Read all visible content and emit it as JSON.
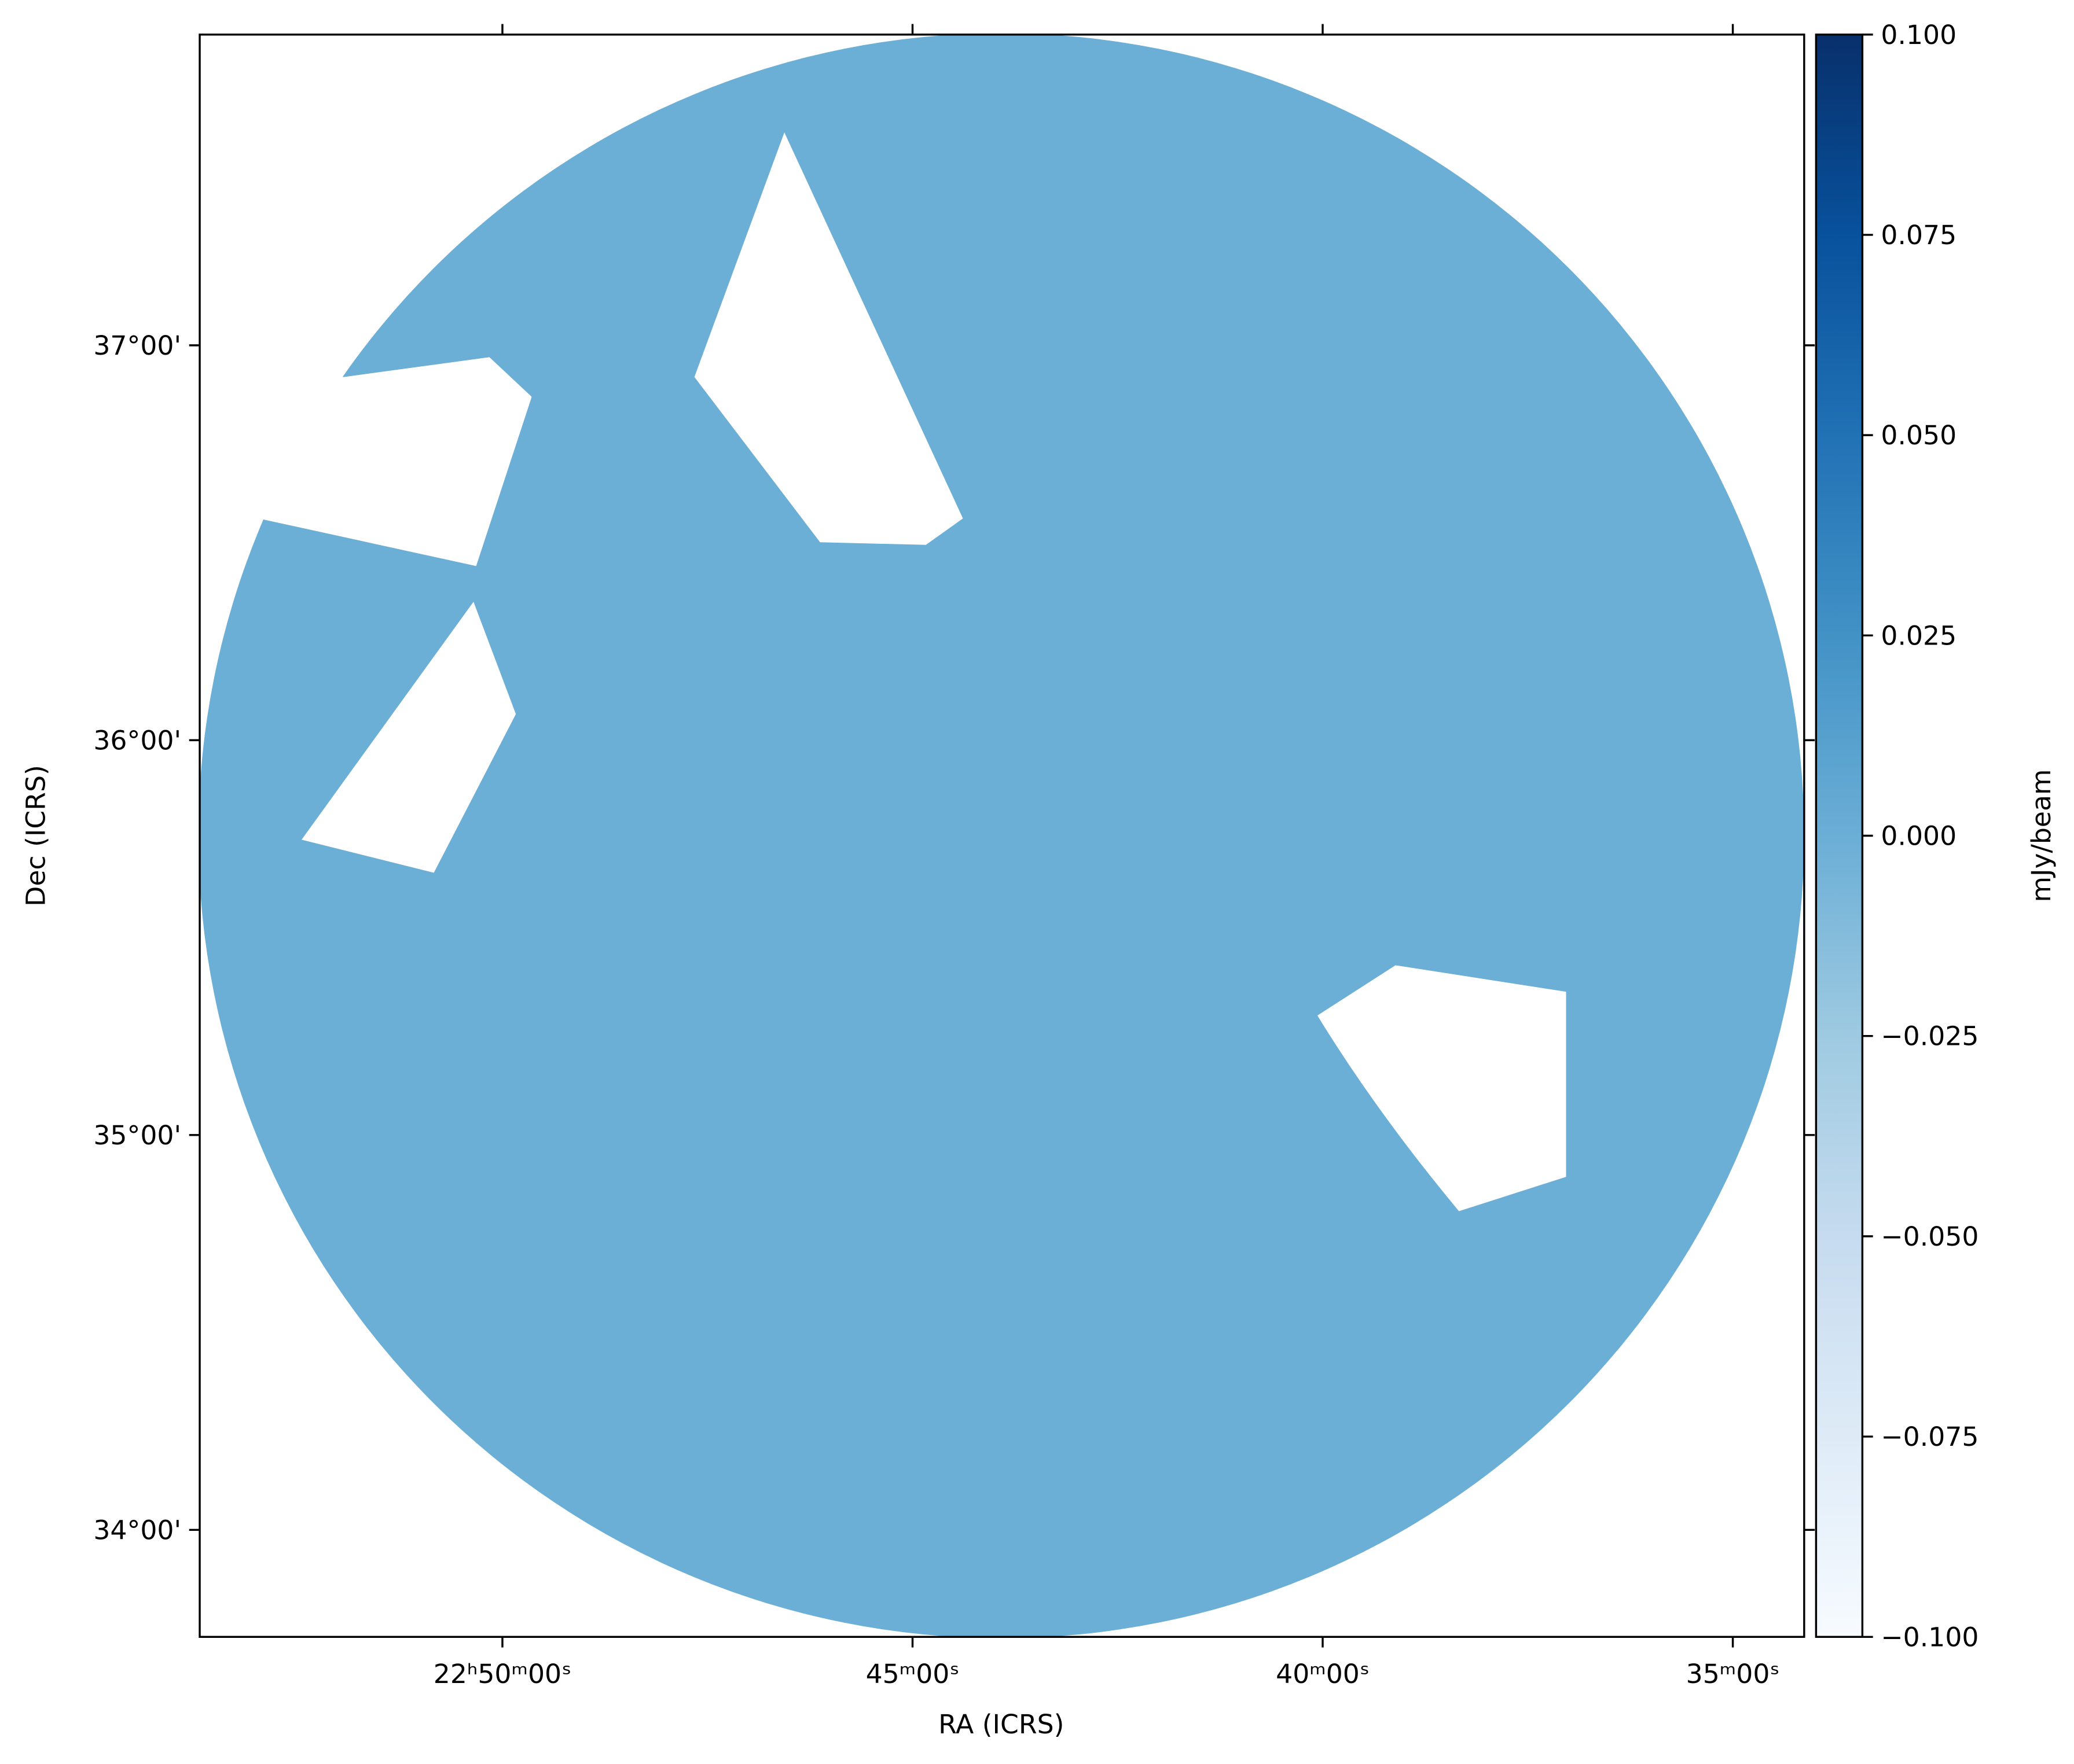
{
  "chart_data": {
    "type": "image",
    "xlabel": "RA (ICRS)",
    "ylabel": "Dec (ICRS)",
    "color": "#6baed6",
    "xlim": [
      53.69,
      34.13
    ],
    "xticks": [
      {
        "value": 50,
        "label": "22ʰ50ᵐ00ˢ"
      },
      {
        "value": 45,
        "label": "45ᵐ00ˢ"
      },
      {
        "value": 40,
        "label": "40ᵐ00ˢ"
      },
      {
        "value": 35,
        "label": "35ᵐ00ˢ"
      }
    ],
    "ylim": [
      33.729,
      37.787
    ],
    "yticks": [
      {
        "value": 37,
        "label": "37°00'"
      },
      {
        "value": 36,
        "label": "36°00'"
      },
      {
        "value": 35,
        "label": "35°00'"
      },
      {
        "value": 34,
        "label": "34°00'"
      }
    ],
    "colorbar": {
      "label": "mJy/beam",
      "cmap": "Blues",
      "lim": [
        -0.1,
        0.1
      ],
      "ticks": [
        {
          "value": 0.1,
          "label": "0.100"
        },
        {
          "value": 0.075,
          "label": "0.075"
        },
        {
          "value": 0.05,
          "label": "0.050"
        },
        {
          "value": 0.025,
          "label": "0.025"
        },
        {
          "value": 0,
          "label": "0.000"
        },
        {
          "value": -0.025,
          "label": "−0.025"
        },
        {
          "value": -0.05,
          "label": "−0.050"
        },
        {
          "value": -0.075,
          "label": "−0.075"
        },
        {
          "value": -0.1,
          "label": "−0.100"
        }
      ]
    }
  }
}
